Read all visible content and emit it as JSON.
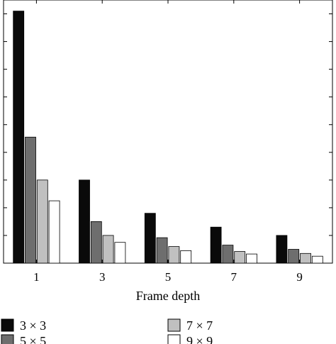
{
  "chart_data": {
    "type": "bar",
    "title": "",
    "xlabel": "Frame depth",
    "ylabel": "",
    "categories": [
      "1",
      "3",
      "5",
      "7",
      "9"
    ],
    "ylim": [
      0,
      9.5
    ],
    "series": [
      {
        "name": "3 × 3",
        "color": "#0a0a0a",
        "values": [
          9.1,
          3.0,
          1.8,
          1.3,
          1.0
        ]
      },
      {
        "name": "5 × 5",
        "color": "#6e6e6e",
        "values": [
          4.55,
          1.5,
          0.92,
          0.65,
          0.5
        ]
      },
      {
        "name": "7 × 7",
        "color": "#c0c0c0",
        "values": [
          3.0,
          1.0,
          0.6,
          0.42,
          0.35
        ]
      },
      {
        "name": "9 × 9",
        "color": "#ffffff",
        "values": [
          2.25,
          0.75,
          0.45,
          0.33,
          0.25
        ]
      }
    ],
    "grid": false,
    "legend_position": "bottom"
  }
}
